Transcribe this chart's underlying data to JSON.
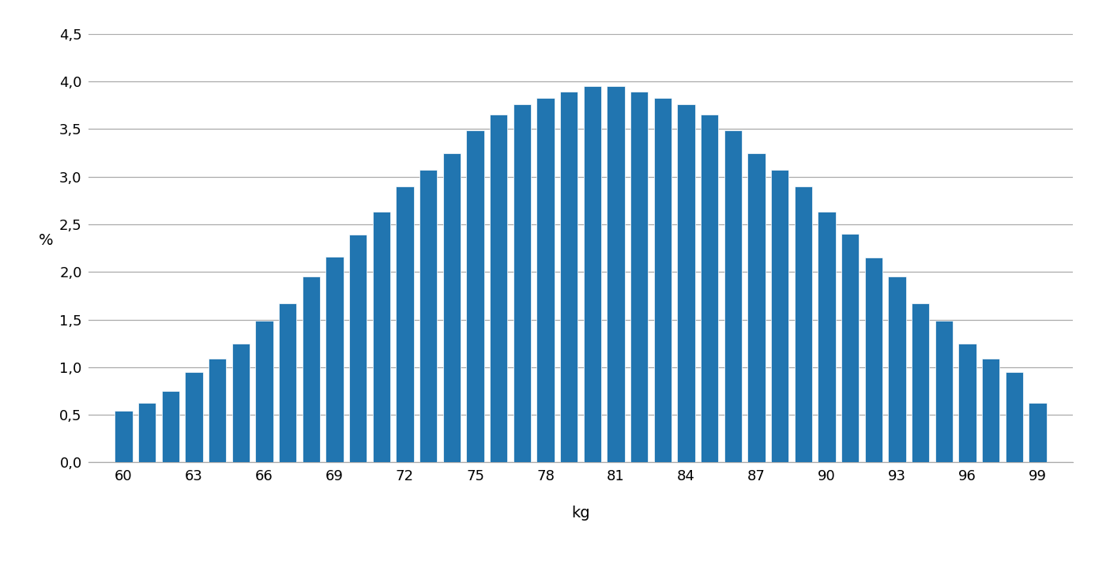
{
  "categories": [
    60,
    61,
    62,
    63,
    64,
    65,
    66,
    67,
    68,
    69,
    70,
    71,
    72,
    73,
    74,
    75,
    76,
    77,
    78,
    79,
    80,
    81,
    82,
    83,
    84,
    85,
    86,
    87,
    88,
    89,
    90,
    91,
    92,
    93,
    94,
    95,
    96,
    97,
    98,
    99
  ],
  "values": [
    0.54,
    0.63,
    0.75,
    0.95,
    1.09,
    1.25,
    1.49,
    1.67,
    1.95,
    2.16,
    2.39,
    2.63,
    2.9,
    3.07,
    3.25,
    3.49,
    3.65,
    3.76,
    3.83,
    3.89,
    3.95,
    3.95,
    3.89,
    3.83,
    3.76,
    3.65,
    3.49,
    3.25,
    3.07,
    2.9,
    2.63,
    2.4,
    2.15,
    1.95,
    1.67,
    1.49,
    1.25,
    1.09,
    0.95,
    0.63
  ],
  "bar_color": "#2175b0",
  "ylabel": "%",
  "xlabel": "kg",
  "ylim": [
    0.0,
    4.5
  ],
  "yticks": [
    0.0,
    0.5,
    1.0,
    1.5,
    2.0,
    2.5,
    3.0,
    3.5,
    4.0,
    4.5
  ],
  "ytick_labels": [
    "0,0",
    "0,5",
    "1,0",
    "1,5",
    "2,0",
    "2,5",
    "3,0",
    "3,5",
    "4,0",
    "4,5"
  ],
  "xticks": [
    60,
    63,
    66,
    69,
    72,
    75,
    78,
    81,
    84,
    87,
    90,
    93,
    96,
    99
  ],
  "background_color": "#ffffff",
  "grid_color": "#aaaaaa",
  "ylabel_fontsize": 14,
  "xlabel_fontsize": 14,
  "tick_fontsize": 13,
  "bar_width": 0.75,
  "xlim_left": 58.5,
  "xlim_right": 100.5
}
